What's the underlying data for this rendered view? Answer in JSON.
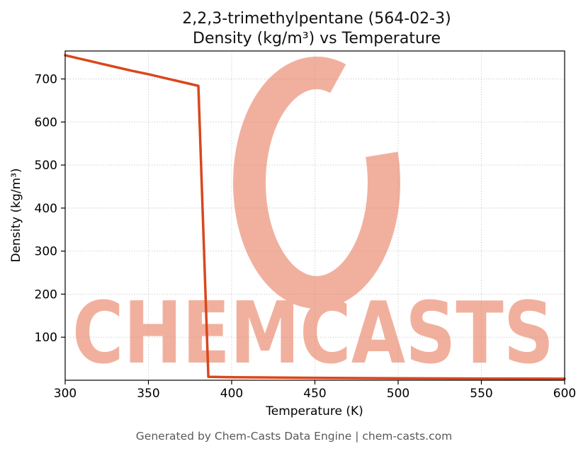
{
  "header": {
    "title_line1": "2,2,3-trimethylpentane (564-02-3)",
    "title_line2": "Density (kg/m³) vs Temperature"
  },
  "footer": {
    "text": "Generated by Chem-Casts Data Engine | chem-casts.com"
  },
  "watermark": {
    "text": "CHEMCASTS",
    "logo": "brush-stroke-c",
    "color": "#e87c5e"
  },
  "chart_data": {
    "type": "line",
    "title": "2,2,3-trimethylpentane (564-02-3) — Density (kg/m³) vs Temperature",
    "xlabel": "Temperature (K)",
    "ylabel": "Density (kg/m³)",
    "xlim": [
      300,
      600
    ],
    "ylim": [
      0,
      765
    ],
    "x_ticks": [
      300,
      350,
      400,
      450,
      500,
      550,
      600
    ],
    "y_ticks": [
      100,
      200,
      300,
      400,
      500,
      600,
      700
    ],
    "grid": true,
    "legend": false,
    "line_color": "#d9471c",
    "line_width": 3.5,
    "series": [
      {
        "name": "Density",
        "x": [
          300,
          310,
          320,
          330,
          340,
          350,
          360,
          370,
          380,
          386,
          400,
          450,
          500,
          550,
          600
        ],
        "y": [
          755,
          746,
          737,
          728,
          719,
          711,
          702,
          693,
          684,
          8,
          7,
          5.5,
          4.5,
          4,
          3.5
        ]
      }
    ]
  }
}
